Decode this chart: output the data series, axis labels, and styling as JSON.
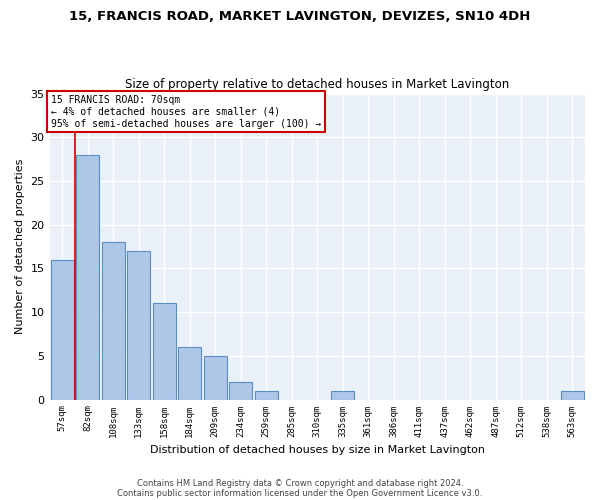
{
  "title1": "15, FRANCIS ROAD, MARKET LAVINGTON, DEVIZES, SN10 4DH",
  "title2": "Size of property relative to detached houses in Market Lavington",
  "xlabel": "Distribution of detached houses by size in Market Lavington",
  "ylabel": "Number of detached properties",
  "footnote1": "Contains HM Land Registry data © Crown copyright and database right 2024.",
  "footnote2": "Contains public sector information licensed under the Open Government Licence v3.0.",
  "bar_labels": [
    "57sqm",
    "82sqm",
    "108sqm",
    "133sqm",
    "158sqm",
    "184sqm",
    "209sqm",
    "234sqm",
    "259sqm",
    "285sqm",
    "310sqm",
    "335sqm",
    "361sqm",
    "386sqm",
    "411sqm",
    "437sqm",
    "462sqm",
    "487sqm",
    "512sqm",
    "538sqm",
    "563sqm"
  ],
  "bar_values": [
    16,
    28,
    18,
    17,
    11,
    6,
    5,
    2,
    1,
    0,
    0,
    1,
    0,
    0,
    0,
    0,
    0,
    0,
    0,
    0,
    1
  ],
  "bar_color": "#aec6e8",
  "bar_edge_color": "#5a8fc2",
  "bg_color": "#eaf0f8",
  "grid_color": "#ffffff",
  "annotation_text": "15 FRANCIS ROAD: 70sqm\n← 4% of detached houses are smaller (4)\n95% of semi-detached houses are larger (100) →",
  "annotation_box_color": "#ffffff",
  "annotation_box_edge": "#cc0000",
  "red_line_x": 0.5,
  "ylim": [
    0,
    35
  ],
  "yticks": [
    0,
    5,
    10,
    15,
    20,
    25,
    30,
    35
  ]
}
